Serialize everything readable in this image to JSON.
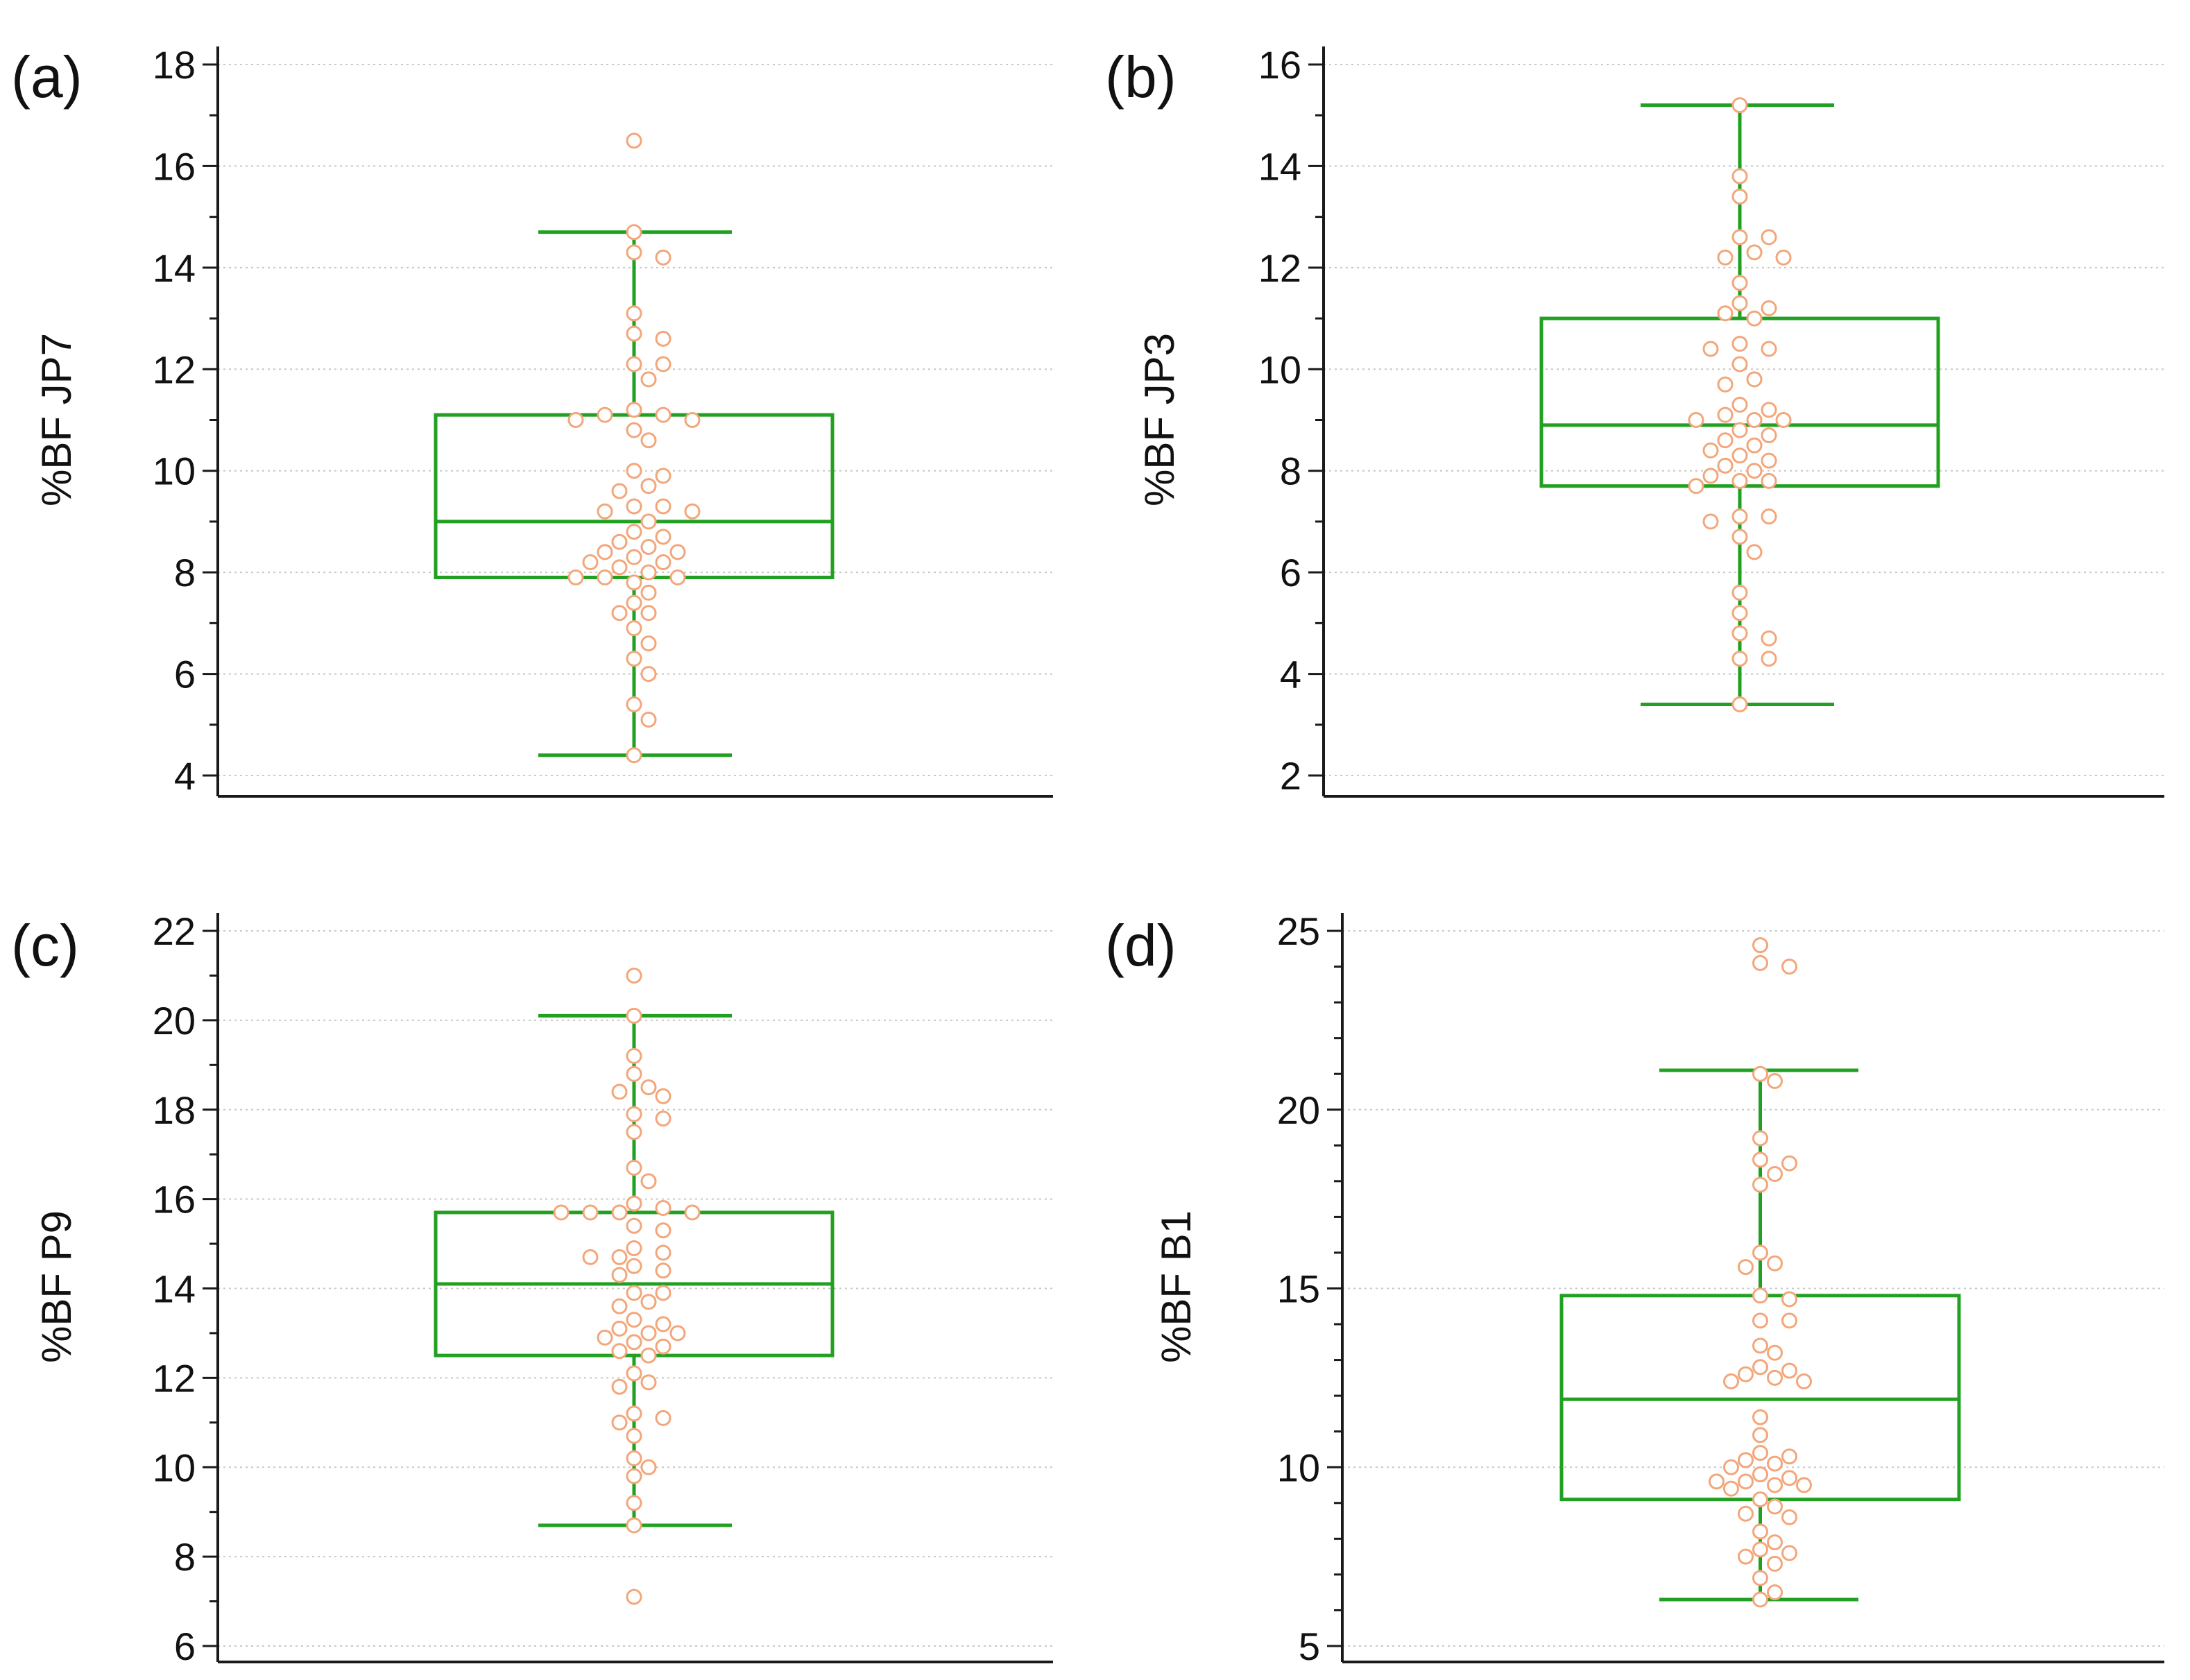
{
  "colors": {
    "box": "#22a022",
    "points": "#f3a67a",
    "grid": "#c8c8c8",
    "axis": "#1a1a1a"
  },
  "chart_data": [
    {
      "type": "box",
      "panel_label": "(a)",
      "ylabel": "%BF JP7",
      "ylim": [
        4,
        18
      ],
      "yticks": [
        4,
        6,
        8,
        10,
        12,
        14,
        16,
        18
      ],
      "tick_labels": [
        "4",
        "6",
        "8",
        "10",
        "12",
        "14",
        "16",
        "18"
      ],
      "minor_step": 1,
      "stats": {
        "whisker_low": 4.4,
        "q1": 7.9,
        "median": 9.0,
        "q3": 11.1,
        "whisker_high": 14.7
      },
      "points": [
        16.5,
        14.7,
        14.3,
        14.2,
        13.1,
        12.7,
        12.6,
        12.1,
        12.1,
        11.8,
        11.2,
        11.1,
        11.1,
        11.0,
        11.0,
        10.8,
        10.6,
        10.0,
        9.9,
        9.7,
        9.6,
        9.3,
        9.3,
        9.2,
        9.2,
        9.0,
        8.8,
        8.7,
        8.6,
        8.5,
        8.4,
        8.4,
        8.3,
        8.2,
        8.2,
        8.1,
        8.0,
        7.9,
        7.9,
        7.9,
        7.8,
        7.6,
        7.4,
        7.2,
        7.2,
        6.9,
        6.6,
        6.3,
        6.0,
        5.4,
        5.1,
        4.4
      ]
    },
    {
      "type": "box",
      "panel_label": "(b)",
      "ylabel": "%BF JP3",
      "ylim": [
        2,
        16
      ],
      "yticks": [
        2,
        4,
        6,
        8,
        10,
        12,
        14,
        16
      ],
      "tick_labels": [
        "2",
        "4",
        "6",
        "8",
        "10",
        "12",
        "14",
        "16"
      ],
      "minor_step": 1,
      "stats": {
        "whisker_low": 3.4,
        "q1": 7.7,
        "median": 8.9,
        "q3": 11.0,
        "whisker_high": 15.2
      },
      "points": [
        15.2,
        13.8,
        13.4,
        12.6,
        12.6,
        12.3,
        12.2,
        12.2,
        11.7,
        11.3,
        11.2,
        11.1,
        11.0,
        10.5,
        10.4,
        10.4,
        10.1,
        9.8,
        9.7,
        9.3,
        9.2,
        9.1,
        9.0,
        9.0,
        9.0,
        8.8,
        8.7,
        8.6,
        8.5,
        8.4,
        8.3,
        8.2,
        8.1,
        8.0,
        7.9,
        7.8,
        7.8,
        7.7,
        7.1,
        7.1,
        7.0,
        6.7,
        6.4,
        5.6,
        5.2,
        4.8,
        4.7,
        4.3,
        4.3,
        3.4
      ]
    },
    {
      "type": "box",
      "panel_label": "(c)",
      "ylabel": "%BF P9",
      "ylim": [
        6,
        22
      ],
      "yticks": [
        6,
        8,
        10,
        12,
        14,
        16,
        18,
        20,
        22
      ],
      "tick_labels": [
        "6",
        "8",
        "10",
        "12",
        "14",
        "16",
        "18",
        "20",
        "22"
      ],
      "minor_step": 1,
      "stats": {
        "whisker_low": 8.7,
        "q1": 12.5,
        "median": 14.1,
        "q3": 15.7,
        "whisker_high": 20.1
      },
      "points": [
        21.0,
        20.1,
        19.2,
        18.8,
        18.5,
        18.4,
        18.3,
        17.9,
        17.8,
        17.5,
        16.7,
        16.4,
        15.9,
        15.8,
        15.7,
        15.7,
        15.7,
        15.7,
        15.4,
        15.3,
        14.9,
        14.8,
        14.7,
        14.7,
        14.5,
        14.4,
        14.3,
        13.9,
        13.9,
        13.7,
        13.6,
        13.3,
        13.2,
        13.1,
        13.0,
        13.0,
        12.9,
        12.8,
        12.7,
        12.6,
        12.5,
        12.1,
        11.9,
        11.8,
        11.2,
        11.1,
        11.0,
        10.7,
        10.2,
        10.0,
        9.8,
        9.2,
        8.7,
        7.1
      ]
    },
    {
      "type": "box",
      "panel_label": "(d)",
      "ylabel": "%BF B1",
      "ylim": [
        5,
        25
      ],
      "yticks": [
        5,
        10,
        15,
        20,
        25
      ],
      "tick_labels": [
        "5",
        "10",
        "15",
        "20",
        "25"
      ],
      "minor_step": 1,
      "stats": {
        "whisker_low": 6.3,
        "q1": 9.1,
        "median": 11.9,
        "q3": 14.8,
        "whisker_high": 21.1
      },
      "points": [
        24.6,
        24.1,
        24.0,
        21.0,
        20.8,
        19.2,
        18.6,
        18.5,
        18.2,
        17.9,
        16.0,
        15.7,
        15.6,
        14.8,
        14.7,
        14.1,
        14.1,
        13.4,
        13.2,
        12.8,
        12.7,
        12.6,
        12.5,
        12.4,
        12.4,
        11.4,
        10.9,
        10.4,
        10.3,
        10.2,
        10.1,
        10.0,
        9.8,
        9.7,
        9.6,
        9.6,
        9.5,
        9.5,
        9.4,
        9.1,
        8.9,
        8.7,
        8.6,
        8.2,
        7.9,
        7.7,
        7.6,
        7.5,
        7.3,
        6.9,
        6.5,
        6.3
      ]
    }
  ]
}
